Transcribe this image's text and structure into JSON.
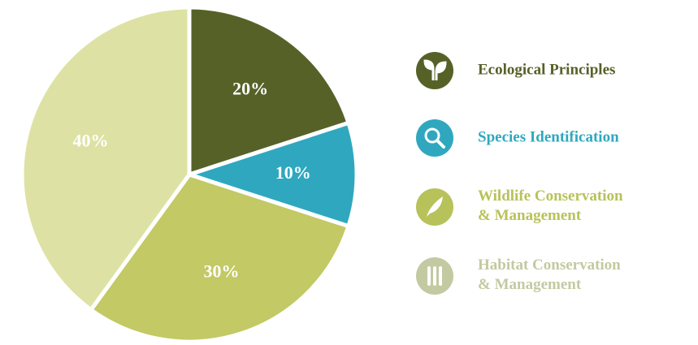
{
  "chart_data": {
    "type": "pie",
    "categories": [
      "Ecological Principles",
      "Species Identification",
      "Wildlife Conservation & Management",
      "Habitat Conservation & Management"
    ],
    "values": [
      20,
      10,
      30,
      40
    ],
    "value_labels": [
      "20%",
      "10%",
      "30%",
      "40%"
    ],
    "colors": [
      "#566128",
      "#2fa8bf",
      "#c2c965",
      "#dde2a4"
    ],
    "legend_colors": [
      "#566128",
      "#2fa8bf",
      "#b8c25a",
      "#c3c9a1"
    ]
  }
}
